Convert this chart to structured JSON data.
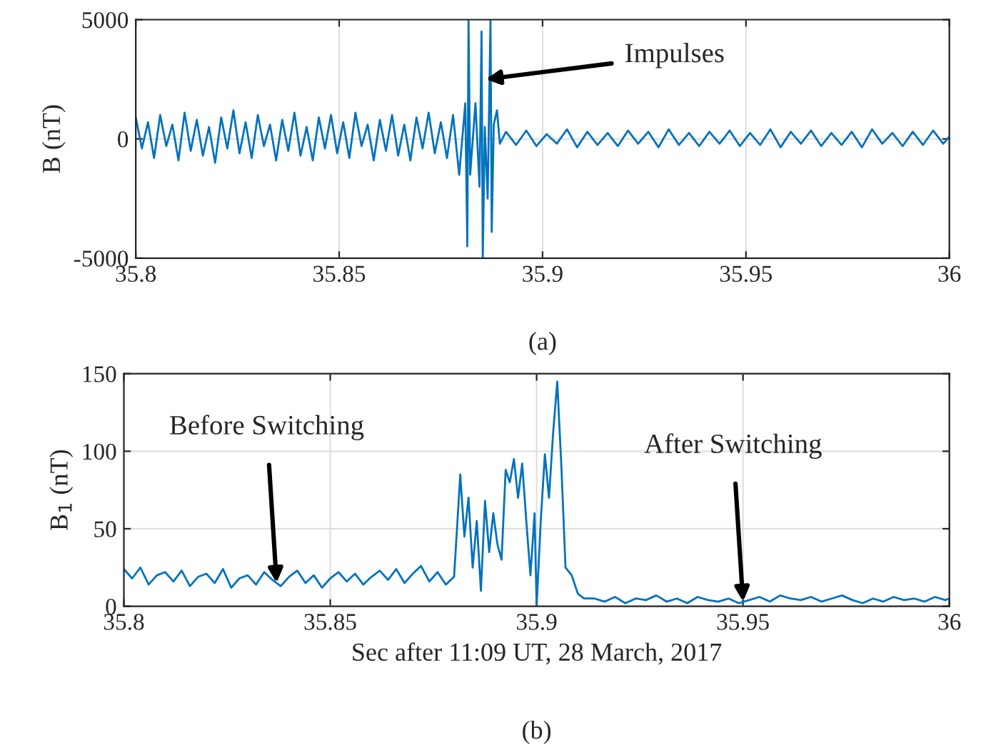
{
  "chart_data": [
    {
      "type": "line",
      "ylabel": "B (nT)",
      "xlim": [
        35.8,
        36
      ],
      "xticks": [
        35.8,
        35.85,
        35.9,
        35.95,
        36
      ],
      "ylim": [
        -5000,
        5000
      ],
      "yticks": [
        -5000,
        0,
        5000
      ],
      "grid": true,
      "line_style": "solid",
      "annotations": [
        {
          "text": "Impulses",
          "x": 35.886,
          "y": 2500
        },
        "(a)"
      ],
      "series": [
        {
          "color": "#0072bd",
          "x": [
            35.8,
            35.8015,
            35.803,
            35.8045,
            35.806,
            35.8075,
            35.809,
            35.8105,
            35.812,
            35.8135,
            35.815,
            35.8165,
            35.818,
            35.8195,
            35.821,
            35.8225,
            35.824,
            35.8255,
            35.827,
            35.8285,
            35.83,
            35.8315,
            35.833,
            35.8345,
            35.836,
            35.8375,
            35.839,
            35.8405,
            35.842,
            35.8435,
            35.845,
            35.8465,
            35.848,
            35.8495,
            35.851,
            35.8525,
            35.854,
            35.8555,
            35.857,
            35.8585,
            35.86,
            35.8615,
            35.863,
            35.8645,
            35.866,
            35.8675,
            35.869,
            35.8705,
            35.872,
            35.8735,
            35.875,
            35.8765,
            35.878,
            35.8795,
            35.881,
            35.8815,
            35.8818,
            35.8822,
            35.8835,
            35.8845,
            35.885,
            35.8853,
            35.8858,
            35.8865,
            35.8872,
            35.8875,
            35.888,
            35.8888,
            35.8895,
            35.891,
            35.8935,
            35.896,
            35.8985,
            35.901,
            35.9035,
            35.906,
            35.9085,
            35.911,
            35.9135,
            35.916,
            35.9185,
            35.921,
            35.9235,
            35.926,
            35.9285,
            35.931,
            35.9335,
            35.936,
            35.9385,
            35.941,
            35.9435,
            35.946,
            35.9485,
            35.951,
            35.9535,
            35.956,
            35.9585,
            35.961,
            35.9635,
            35.966,
            35.9685,
            35.971,
            35.9735,
            35.976,
            35.9785,
            35.981,
            35.9835,
            35.986,
            35.9885,
            35.991,
            35.9935,
            35.996,
            35.9985,
            36
          ],
          "values": [
            900,
            -400,
            700,
            -800,
            1000,
            -300,
            600,
            -900,
            1100,
            -500,
            800,
            -700,
            500,
            -1000,
            900,
            -400,
            1200,
            -600,
            700,
            -800,
            1000,
            -300,
            600,
            -900,
            800,
            -500,
            1100,
            -700,
            500,
            -900,
            900,
            -400,
            1000,
            -600,
            700,
            -800,
            1100,
            -300,
            600,
            -900,
            800,
            -500,
            1000,
            -700,
            600,
            -900,
            900,
            -400,
            1100,
            -600,
            700,
            -800,
            1000,
            -1500,
            1500,
            -4500,
            5000,
            -1500,
            1500,
            -2000,
            4500,
            -5000,
            500,
            -2500,
            5000,
            -3900,
            600,
            1200,
            -200,
            300,
            -250,
            350,
            -300,
            200,
            -200,
            400,
            -350,
            300,
            -250,
            250,
            -300,
            350,
            -200,
            300,
            -350,
            400,
            -250,
            250,
            -300,
            300,
            -200,
            350,
            -300,
            250,
            -250,
            400,
            -350,
            300,
            -200,
            350,
            -300,
            250,
            -250,
            300,
            -350,
            400,
            -200,
            250,
            -300,
            300,
            -250,
            350,
            -200,
            100
          ]
        }
      ]
    },
    {
      "type": "line",
      "xlabel": "Sec after 11:09 UT, 28 March, 2017",
      "ylabel": "B$_{1}$ (nT)",
      "xlim": [
        35.8,
        36
      ],
      "xticks": [
        35.8,
        35.85,
        35.9,
        35.95,
        36
      ],
      "ylim": [
        0,
        150
      ],
      "yticks": [
        0,
        50,
        100,
        150
      ],
      "grid": true,
      "line_style": "solid",
      "annotations": [
        {
          "text": "Before Switching",
          "x": 35.837,
          "y": 15
        },
        {
          "text": "After Switching",
          "x": 35.95,
          "y": 3
        },
        "(b)"
      ],
      "series": [
        {
          "color": "#0072bd",
          "x": [
            35.8,
            35.802,
            35.804,
            35.806,
            35.808,
            35.81,
            35.812,
            35.814,
            35.816,
            35.818,
            35.82,
            35.822,
            35.824,
            35.826,
            35.828,
            35.83,
            35.832,
            35.834,
            35.836,
            35.838,
            35.84,
            35.842,
            35.844,
            35.846,
            35.848,
            35.85,
            35.852,
            35.854,
            35.856,
            35.858,
            35.86,
            35.862,
            35.864,
            35.866,
            35.868,
            35.87,
            35.872,
            35.874,
            35.876,
            35.878,
            35.88,
            35.8815,
            35.8825,
            35.8835,
            35.8845,
            35.8855,
            35.8865,
            35.8875,
            35.8885,
            35.8895,
            35.8905,
            35.8915,
            35.8925,
            35.8935,
            35.8945,
            35.8955,
            35.8965,
            35.8975,
            35.8985,
            35.8995,
            35.9,
            35.901,
            35.902,
            35.903,
            35.904,
            35.905,
            35.906,
            35.907,
            35.9085,
            35.91,
            35.9115,
            35.914,
            35.9165,
            35.919,
            35.9215,
            35.924,
            35.9265,
            35.929,
            35.9315,
            35.934,
            35.9365,
            35.939,
            35.9415,
            35.944,
            35.9465,
            35.949,
            35.9515,
            35.954,
            35.9565,
            35.959,
            35.9615,
            35.964,
            35.9665,
            35.969,
            35.9715,
            35.974,
            35.9765,
            35.979,
            35.9815,
            35.984,
            35.9865,
            35.989,
            35.9915,
            35.994,
            35.9965,
            35.999,
            36
          ],
          "values": [
            24,
            18,
            25,
            14,
            20,
            22,
            16,
            23,
            13,
            19,
            21,
            15,
            24,
            12,
            18,
            20,
            14,
            22,
            17,
            13,
            19,
            23,
            15,
            20,
            12,
            18,
            22,
            16,
            21,
            14,
            19,
            23,
            17,
            24,
            15,
            21,
            26,
            16,
            22,
            14,
            19,
            85,
            45,
            70,
            25,
            55,
            10,
            68,
            35,
            60,
            40,
            30,
            88,
            80,
            95,
            70,
            92,
            55,
            20,
            60,
            0,
            55,
            98,
            70,
            112,
            145,
            90,
            25,
            20,
            8,
            5,
            5,
            3,
            6,
            2,
            5,
            4,
            7,
            3,
            5,
            2,
            6,
            4,
            3,
            5,
            2,
            4,
            6,
            3,
            7,
            5,
            4,
            6,
            3,
            5,
            7,
            4,
            2,
            5,
            3,
            6,
            4,
            5,
            3,
            6,
            4,
            5
          ]
        }
      ]
    }
  ]
}
